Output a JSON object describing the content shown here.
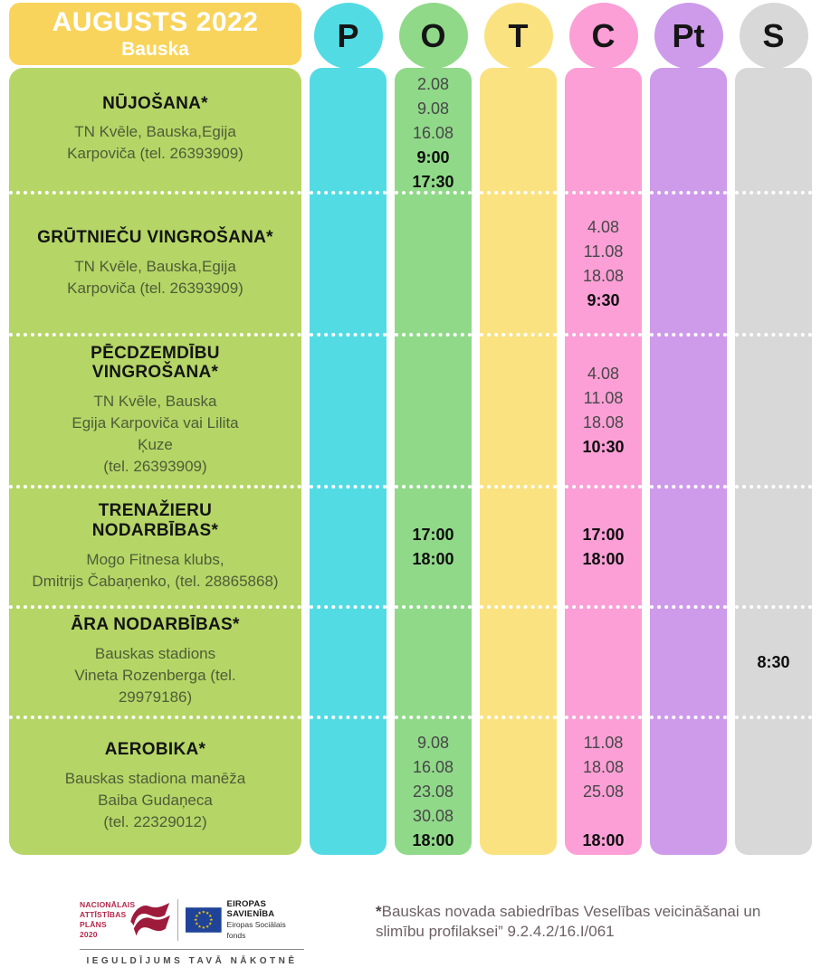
{
  "header": {
    "title": "AUGUSTS 2022",
    "subtitle": "Bauska"
  },
  "days": [
    {
      "key": "P",
      "color": "#53DBE4"
    },
    {
      "key": "O",
      "color": "#90D989"
    },
    {
      "key": "T",
      "color": "#FBE281"
    },
    {
      "key": "C",
      "color": "#FB9FD6"
    },
    {
      "key": "Pt",
      "color": "#CE9BEB"
    },
    {
      "key": "S",
      "color": "#D8D8D8"
    }
  ],
  "colors": {
    "header_bg": "#F8D45C",
    "activity_bg": "#B5D666",
    "detail_text": "#4F5C38",
    "date_text": "#474747"
  },
  "rows": [
    {
      "valign": "top",
      "pad": 5,
      "activity": {
        "title_lines": [
          "NŪJOŠANA*"
        ],
        "details": [
          "TN Kvēle, Bauska,Egija",
          "Karpoviča (tel. 26393909)"
        ]
      },
      "cells": {
        "O": [
          {
            "t": "2.08"
          },
          {
            "t": "9.08"
          },
          {
            "t": "16.08"
          },
          {
            "t": "9:00",
            "b": true
          },
          {
            "t": "17:30",
            "b": true
          }
        ]
      }
    },
    {
      "valign": "center",
      "activity": {
        "title_lines": [
          "GRŪTNIEČU VINGROŠANA*"
        ],
        "details": [
          "TN Kvēle, Bauska,Egija",
          "Karpoviča (tel. 26393909)"
        ]
      },
      "cells": {
        "C": [
          {
            "t": "4.08"
          },
          {
            "t": "11.08"
          },
          {
            "t": "18.08"
          },
          {
            "t": "9:30",
            "b": true
          }
        ]
      }
    },
    {
      "valign": "center",
      "activity": {
        "title_lines": [
          "PĒCDZEMDĪBU",
          "VINGROŠANA*"
        ],
        "details": [
          "TN Kvēle, Bauska",
          "Egija Karpoviča vai Lilita",
          "Ķuze",
          "(tel. 26393909)"
        ]
      },
      "cells": {
        "C": [
          {
            "t": "4.08"
          },
          {
            "t": "11.08"
          },
          {
            "t": "18.08"
          },
          {
            "t": "10:30",
            "b": true
          }
        ]
      }
    },
    {
      "valign": "center",
      "activity": {
        "title_lines": [
          "TRENAŽIERU",
          "NODARBĪBAS*"
        ],
        "details": [
          "Mogo Fitnesa klubs,",
          "Dmitrijs Čabaņenko, (tel. 28865868)"
        ]
      },
      "cells": {
        "O": [
          {
            "t": "17:00",
            "b": true
          },
          {
            "t": "18:00",
            "b": true
          }
        ],
        "C": [
          {
            "t": "17:00",
            "b": true
          },
          {
            "t": "18:00",
            "b": true
          }
        ]
      }
    },
    {
      "valign": "center",
      "activity": {
        "title_lines": [
          "ĀRA NODARBĪBAS*"
        ],
        "details": [
          "Bauskas stadions",
          "Vineta Rozenberga  (tel.",
          "29979186)"
        ]
      },
      "cells": {
        "S": [
          {
            "t": "8:30",
            "b": true
          }
        ]
      }
    },
    {
      "valign": "top",
      "pad": 13,
      "activity": {
        "title_lines": [
          "AEROBIKA*"
        ],
        "details": [
          "Bauskas stadiona manēža",
          "Baiba Gudaņeca",
          "(tel. 22329012)"
        ]
      },
      "cells": {
        "O": [
          {
            "t": "9.08"
          },
          {
            "t": "16.08"
          },
          {
            "t": "23.08"
          },
          {
            "t": "30.08"
          },
          {
            "t": "18:00",
            "b": true
          }
        ],
        "C": [
          {
            "t": "11.08"
          },
          {
            "t": "18.08"
          },
          {
            "t": "25.08"
          },
          {
            "t": ""
          },
          {
            "t": "18:00",
            "b": true
          }
        ]
      }
    }
  ],
  "footer": {
    "nap_lines": [
      "NACIONĀLAIS",
      "ATTĪSTĪBAS",
      "PLĀNS 2020"
    ],
    "eu_title": "EIROPAS SAVIENĪBA",
    "eu_sub_lines": [
      "Eiropas Sociālais",
      "fonds"
    ],
    "tagline": "IEGULDĪJUMS TAVĀ NĀKOTNĒ",
    "note_star": "*",
    "note_text": "Bauskas novada sabiedrības Veselības veicināšanai un slimību profilaksei” 9.2.4.2/16.I/061"
  }
}
